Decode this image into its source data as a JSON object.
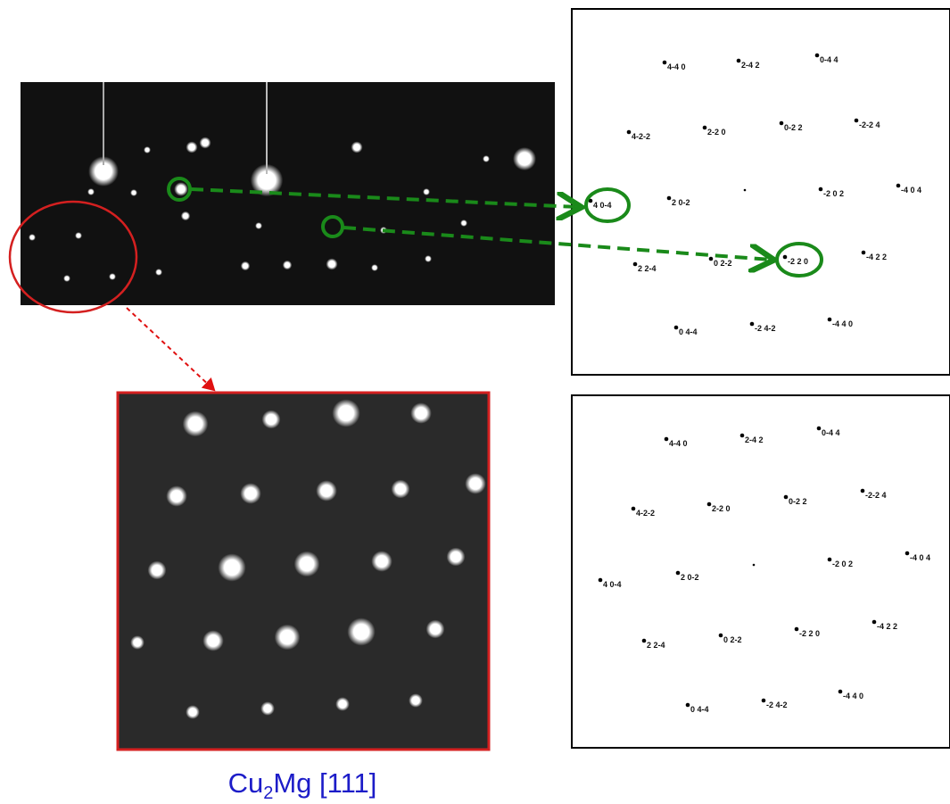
{
  "caption": {
    "pre": "Cu",
    "sub": "2",
    "post": "Mg [111]"
  },
  "top_panel": {
    "labels": [
      "4-4 0",
      "2-4 2",
      "0-4 4",
      "4-2-2",
      "2-2 0",
      "0-2 2",
      "-2-2 4",
      "4 0-4",
      "2 0-2",
      "-2 0 2",
      "-4 0 4",
      "2 2-4",
      "0 2-2",
      "-2 2 0",
      "-4 2 2",
      "0 4-4",
      "-2 4-2",
      "-4 4 0"
    ]
  },
  "bottom_panel": {
    "labels": [
      "4-4 0",
      "2-4 2",
      "0-4 4",
      "4-2-2",
      "2-2 0",
      "0-2 2",
      "-2-2 4",
      "4 0-4",
      "2 0-2",
      "-2 0 2",
      "-4 0 4",
      "2 2-4",
      "0 2-2",
      "-2 2 0",
      "-4 2 2",
      "0 4-4",
      "-2 4-2",
      "-4 4 0"
    ]
  }
}
